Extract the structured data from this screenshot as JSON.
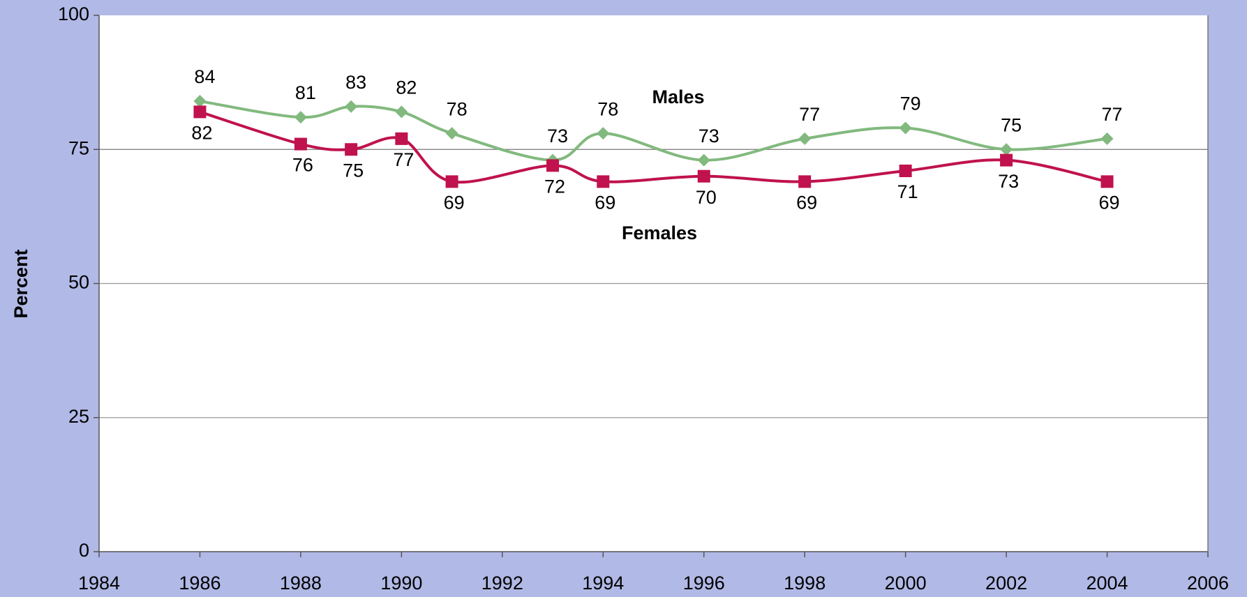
{
  "chart_data": {
    "type": "line",
    "ylabel": "Percent",
    "xlim": [
      1984,
      2006
    ],
    "xticks": [
      1984,
      1986,
      1988,
      1990,
      1992,
      1994,
      1996,
      1998,
      2000,
      2002,
      2004,
      2006
    ],
    "ylim": [
      0,
      100
    ],
    "yticks": [
      0,
      25,
      50,
      75,
      100
    ],
    "grid": true,
    "series": [
      {
        "name": "Males",
        "color": "#82b97e",
        "marker": "diamond",
        "x": [
          1986,
          1988,
          1989,
          1990,
          1991,
          1993,
          1994,
          1996,
          1998,
          2000,
          2002,
          2004
        ],
        "values": [
          84,
          81,
          83,
          82,
          78,
          73,
          78,
          73,
          77,
          79,
          75,
          77
        ]
      },
      {
        "name": "Females",
        "color": "#c0124e",
        "marker": "square",
        "x": [
          1986,
          1988,
          1989,
          1990,
          1991,
          1993,
          1994,
          1996,
          1998,
          2000,
          2002,
          2004
        ],
        "values": [
          82,
          76,
          75,
          77,
          69,
          72,
          69,
          70,
          69,
          71,
          73,
          69
        ]
      }
    ]
  }
}
